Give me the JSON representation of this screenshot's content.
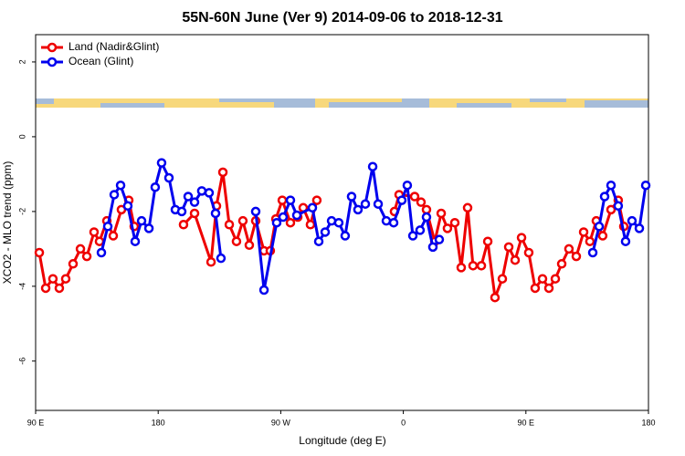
{
  "chart_data": {
    "type": "line",
    "title": "55N-60N June (Ver 9)   2014-09-06 to 2018-12-31",
    "x_label": "Longitude (deg E)",
    "y_label": "XCO2 - MLO trend (ppm)",
    "xlim": [
      90,
      540
    ],
    "xticks": [
      {
        "value": 90,
        "label": "90 E"
      },
      180,
      {
        "value": 270,
        "label": "90 W"
      },
      {
        "value": 360,
        "label": "0"
      },
      {
        "value": 450,
        "label": "90 E"
      },
      {
        "value": 540,
        "label": "180"
      }
    ],
    "ylim": [
      -7.32,
      2.73
    ],
    "yticks": [
      2,
      0,
      -2,
      -4,
      -6
    ],
    "legend": "top-left",
    "series": [
      {
        "name": "Land (Nadir&Glint)",
        "color": "#ee0000",
        "x": [
          92.7,
          97.4,
          102.7,
          107.4,
          112.1,
          117.5,
          122.9,
          127.6,
          132.9,
          136.9,
          142.3,
          147.0,
          153.0,
          158.4,
          162.4,
          null,
          198.6,
          206.7,
          218.8,
          222.8,
          227.5,
          232.2,
          237.5,
          242.2,
          246.9,
          251.6,
          257.7,
          262.3,
          266.4,
          271.1,
          277.1,
          282.5,
          286.5,
          291.8,
          296.5,
          null,
          353.5,
          356.9,
          368.3,
          373.0,
          377.0,
          383.1,
          387.8,
          392.4,
          397.8,
          402.5,
          407.2,
          411.2,
          417.3,
          422.0,
          427.3,
          432.7,
          437.4,
          442.1,
          446.8,
          452.1,
          456.8,
          462.2,
          466.9,
          471.6,
          476.3,
          481.6,
          487.0,
          492.4,
          497.0,
          501.7,
          506.4,
          512.5,
          517.8,
          521.9
        ],
        "values": [
          -3.1,
          -4.05,
          -3.8,
          -4.05,
          -3.8,
          -3.4,
          -3.0,
          -3.2,
          -2.55,
          -2.8,
          -2.25,
          -2.65,
          -1.95,
          -1.7,
          -2.4,
          null,
          -2.35,
          -2.05,
          -3.35,
          -1.85,
          -0.95,
          -2.35,
          -2.8,
          -2.25,
          -2.9,
          -2.25,
          -3.05,
          -3.05,
          -2.2,
          -1.7,
          -2.3,
          -2.15,
          -1.9,
          -2.35,
          -1.7,
          null,
          -2.0,
          -1.55,
          -1.6,
          -1.75,
          -1.95,
          -2.8,
          -2.05,
          -2.45,
          -2.3,
          -3.5,
          -1.9,
          -3.45,
          -3.45,
          -2.8,
          -4.3,
          -3.8,
          -2.95,
          -3.3,
          -2.7,
          -3.1,
          -4.05,
          -3.8,
          -4.05,
          -3.8,
          -3.4,
          -3.0,
          -3.2,
          -2.55,
          -2.8,
          -2.25,
          -2.65,
          -1.95,
          -1.7,
          -2.4
        ]
      },
      {
        "name": "Ocean (Glint)",
        "color": "#0000ee",
        "x": [
          138.3,
          143.0,
          147.7,
          152.4,
          157.7,
          163.1,
          167.8,
          173.2,
          177.8,
          182.5,
          187.9,
          192.6,
          197.3,
          202.0,
          206.7,
          212.0,
          217.4,
          222.1,
          226.1,
          null,
          251.6,
          257.7,
          267.0,
          271.7,
          277.1,
          281.8,
          293.2,
          297.9,
          302.6,
          307.3,
          312.6,
          317.3,
          322.0,
          326.7,
          332.1,
          337.5,
          341.5,
          347.5,
          352.9,
          358.9,
          362.9,
          367.0,
          372.3,
          377.0,
          381.7,
          386.4,
          null,
          499.1,
          503.8,
          507.8,
          512.5,
          517.8,
          523.2,
          527.9,
          533.3,
          538.0
        ],
        "values": [
          -3.1,
          -2.4,
          -1.55,
          -1.3,
          -1.85,
          -2.8,
          -2.25,
          -2.45,
          -1.35,
          -0.7,
          -1.1,
          -1.95,
          -2.0,
          -1.6,
          -1.75,
          -1.45,
          -1.5,
          -2.05,
          -3.25,
          null,
          -2.0,
          -4.1,
          -2.3,
          -2.15,
          -1.7,
          -2.1,
          -1.9,
          -2.8,
          -2.55,
          -2.25,
          -2.3,
          -2.65,
          -1.6,
          -1.95,
          -1.8,
          -0.8,
          -1.8,
          -2.25,
          -2.3,
          -1.7,
          -1.3,
          -2.65,
          -2.5,
          -2.15,
          -2.95,
          -2.75,
          null,
          -3.1,
          -2.4,
          -1.6,
          -1.3,
          -1.85,
          -2.8,
          -2.25,
          -2.45,
          -1.3
        ]
      }
    ]
  }
}
